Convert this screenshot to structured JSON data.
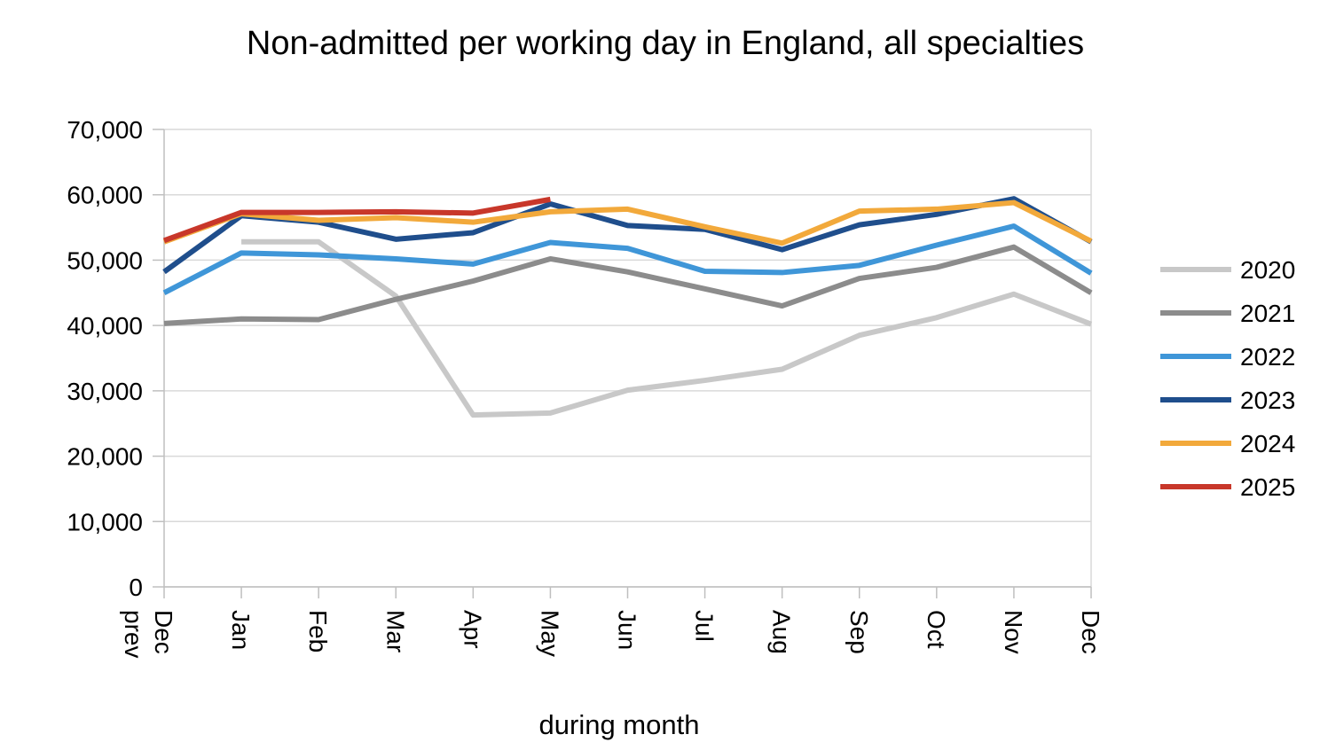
{
  "chart_data": {
    "type": "line",
    "title": "Non-admitted per working day in England, all specialties",
    "xlabel": "during month",
    "ylabel": "",
    "ylim": [
      0,
      70000
    ],
    "yticks": [
      0,
      10000,
      20000,
      30000,
      40000,
      50000,
      60000,
      70000
    ],
    "ytick_labels": [
      "0",
      "10,000",
      "20,000",
      "30,000",
      "40,000",
      "50,000",
      "60,000",
      "70,000"
    ],
    "categories": [
      "Dec prev",
      "Jan",
      "Feb",
      "Mar",
      "Apr",
      "May",
      "Jun",
      "Jul",
      "Aug",
      "Sep",
      "Oct",
      "Nov",
      "Dec"
    ],
    "grid": "horizontal",
    "legend": "right",
    "series": [
      {
        "name": "2020",
        "color": "#c8c8c8",
        "values": [
          null,
          52800,
          52800,
          44500,
          26300,
          26600,
          30100,
          31600,
          33300,
          38500,
          41200,
          44800,
          40200
        ]
      },
      {
        "name": "2021",
        "color": "#8c8c8c",
        "values": [
          40300,
          41000,
          40900,
          44000,
          46800,
          50200,
          48200,
          45600,
          43000,
          47200,
          48900,
          52000,
          45000
        ]
      },
      {
        "name": "2022",
        "color": "#3f96d8",
        "values": [
          45000,
          51100,
          50800,
          50200,
          49400,
          52700,
          51800,
          48300,
          48100,
          49200,
          52300,
          55200,
          48000
        ]
      },
      {
        "name": "2023",
        "color": "#1f4e8c",
        "values": [
          48200,
          56800,
          55800,
          53200,
          54200,
          58600,
          55300,
          54700,
          51600,
          55400,
          57000,
          59400,
          52800
        ]
      },
      {
        "name": "2024",
        "color": "#f2a93b",
        "values": [
          52800,
          57100,
          56100,
          56500,
          55800,
          57400,
          57800,
          55100,
          52600,
          57500,
          57800,
          58800,
          52900
        ]
      },
      {
        "name": "2025",
        "color": "#c8372a",
        "values": [
          53000,
          57300,
          57300,
          57400,
          57200,
          59300,
          null,
          null,
          null,
          null,
          null,
          null,
          null
        ]
      }
    ]
  }
}
